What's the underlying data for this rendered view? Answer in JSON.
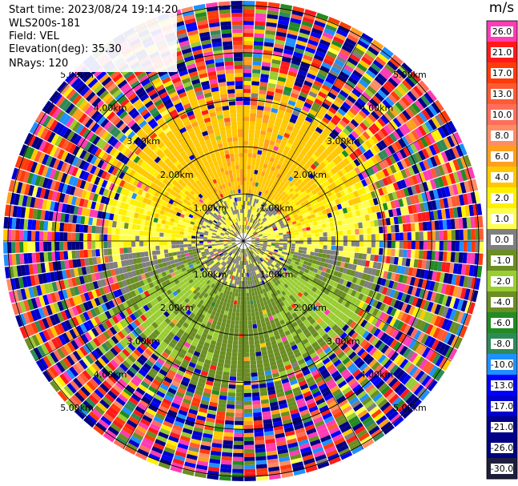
{
  "header": {
    "start_time": "Start time: 2023/08/24 19:14:20",
    "instrument": "WLS200s-181",
    "field": "Field: VEL",
    "elevation": "Elevation(deg): 35.30",
    "nrays": "NRays: 120"
  },
  "colorbar": {
    "units": "m/s",
    "labels": [
      "26.0",
      "21.0",
      "17.0",
      "13.0",
      "10.0",
      "8.0",
      "6.0",
      "4.0",
      "2.0",
      "1.0",
      "0.0",
      "-1.0",
      "-2.0",
      "-4.0",
      "-6.0",
      "-8.0",
      "-10.0",
      "-13.0",
      "-17.0",
      "-21.0",
      "-26.0",
      "-30.0"
    ],
    "colors": [
      "#ff3cb4",
      "#ff1a1a",
      "#ff3b0a",
      "#ff5a32",
      "#ff6e5a",
      "#ff8c64",
      "#ff9f1e",
      "#ffc800",
      "#fff000",
      "#ffff50",
      "#7f7f7f",
      "#6b8e23",
      "#9acd32",
      "#6b8e23",
      "#228b22",
      "#2e8b57",
      "#1e90ff",
      "#0000ff",
      "#0000cd",
      "#00008b",
      "#000080",
      "#1e1e3c"
    ]
  },
  "chart_data": {
    "type": "heatmap",
    "projection": "PPI (polar)",
    "field": "VEL",
    "units": "m/s",
    "elevation_deg": 35.3,
    "n_rays": 120,
    "range_rings_km": [
      1.0,
      2.0,
      3.0,
      4.0,
      5.0
    ],
    "range_labels": [
      "1.00km",
      "2.00km",
      "3.00km",
      "4.00km",
      "5.00km"
    ],
    "color_scale_ticks": [
      26.0,
      21.0,
      17.0,
      13.0,
      10.0,
      8.0,
      6.0,
      4.0,
      2.0,
      1.0,
      0.0,
      -1.0,
      -2.0,
      -4.0,
      -6.0,
      -8.0,
      -10.0,
      -13.0,
      -17.0,
      -21.0,
      -26.0,
      -30.0
    ],
    "pattern": {
      "north_sector_mean_ms": 3.5,
      "south_sector_mean_ms": -5.0,
      "east_west_mean_ms": 0.5,
      "noise_begins_km": 2.8
    }
  }
}
